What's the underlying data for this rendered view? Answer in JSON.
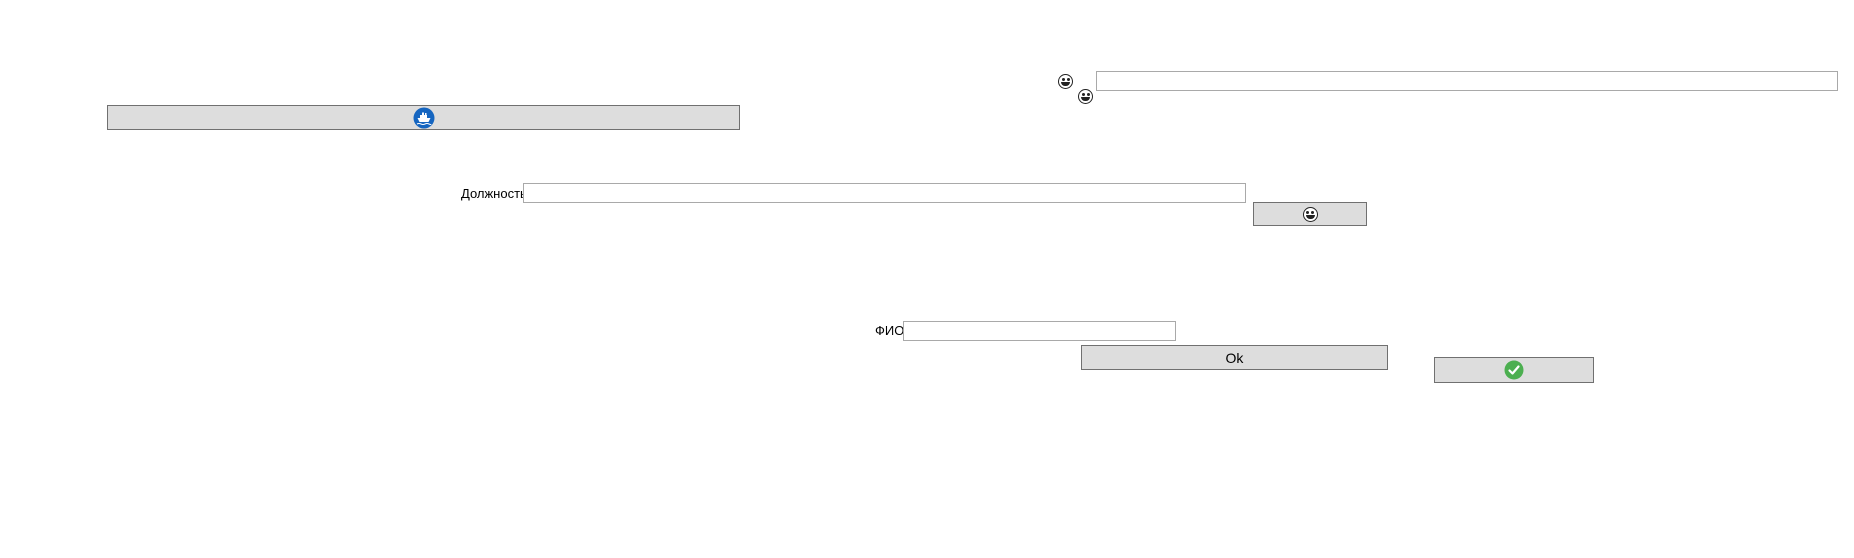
{
  "icons": {
    "top_emoji_1": "laughing-face-icon",
    "top_emoji_2": "grinning-face-icon",
    "ship_button_icon": "ship-icon",
    "emoji_button_icon": "laughing-face-icon",
    "check_button_icon": "check-circle-icon"
  },
  "colors": {
    "ship_icon": "#1565c0",
    "check_icon": "#4caf50",
    "button_bg": "#dddddd"
  },
  "form": {
    "top_input_value": "",
    "position_label": "Должность",
    "position_value": "",
    "fio_label": "ФИО",
    "fio_value": "",
    "ok_label": "Ok"
  }
}
